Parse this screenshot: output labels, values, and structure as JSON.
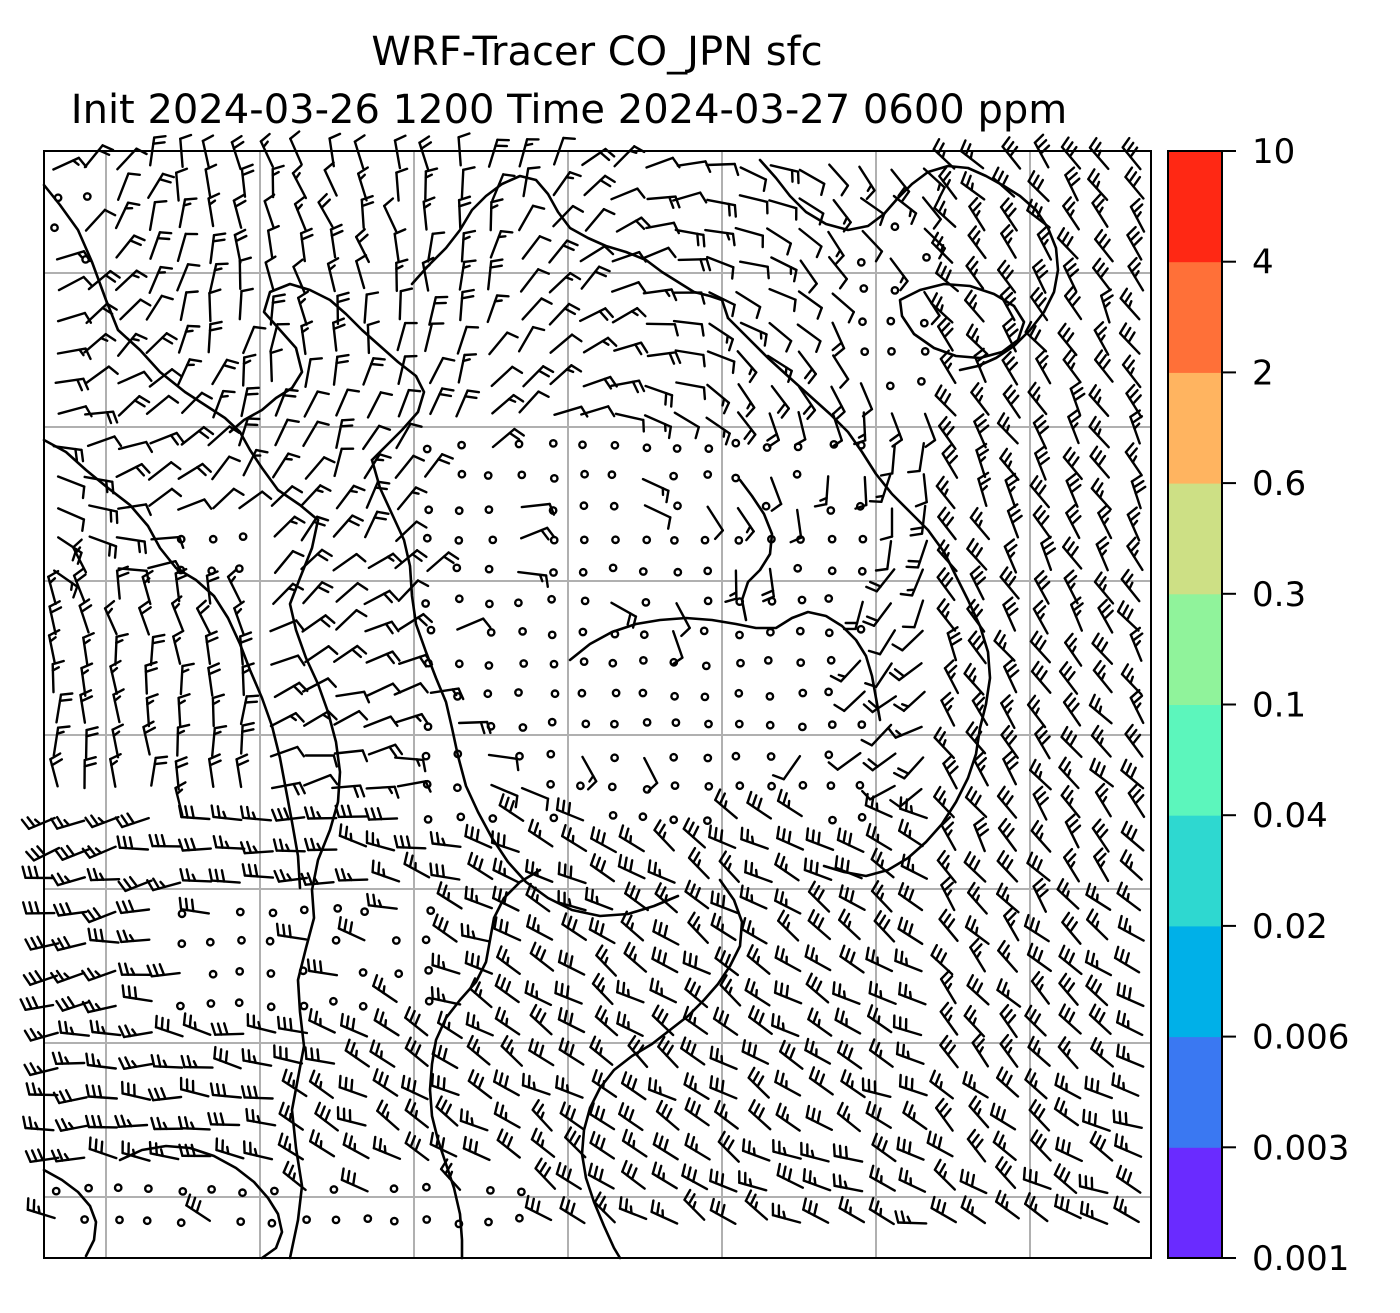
{
  "title": {
    "line1": "WRF-Tracer CO_JPN sfc",
    "line2": "Init 2024-03-26 1200 Time 2024-03-27 0600 ppm"
  },
  "map": {
    "gridlines": "on",
    "features": [
      "coastlines",
      "wind-barbs",
      "calm-wind-circles"
    ],
    "line_color": "#000000",
    "grid_color": "#b0b0b0"
  },
  "colorbar": {
    "position": "right",
    "orientation": "vertical",
    "ticks": [
      "0.001",
      "0.003",
      "0.006",
      "0.02",
      "0.04",
      "0.1",
      "0.3",
      "0.6",
      "2",
      "4",
      "10"
    ],
    "colors": [
      "#6a2bff",
      "#3a78f2",
      "#00b0e8",
      "#2ed8d0",
      "#5cf6bc",
      "#90f39b",
      "#cde085",
      "#ffb460",
      "#ff7038",
      "#ff2814"
    ]
  }
}
